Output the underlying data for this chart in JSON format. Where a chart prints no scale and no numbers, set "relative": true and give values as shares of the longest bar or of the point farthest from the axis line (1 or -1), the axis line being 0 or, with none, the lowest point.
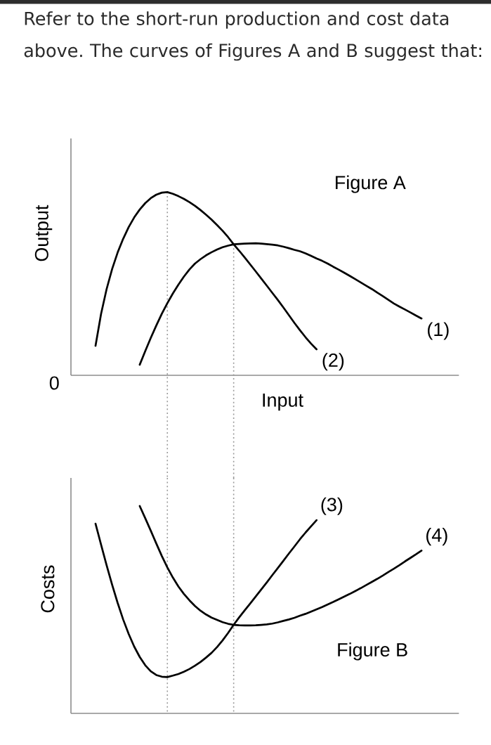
{
  "chart_data": [
    {
      "type": "line",
      "relative": true,
      "title": "Figure A",
      "xlabel": "Input",
      "ylabel": "Output",
      "annotations": [
        "Refer to the short-run production and cost data above. The curves of Figures A and B suggest that:",
        "0"
      ],
      "categories": [
        null,
        null,
        null,
        null,
        null,
        null,
        null,
        null,
        null,
        null,
        null,
        null,
        null,
        null,
        null,
        null,
        null,
        null,
        null,
        null,
        null,
        null,
        null,
        null,
        null,
        null,
        null,
        null,
        null,
        null,
        null,
        null,
        null,
        null,
        null,
        null,
        null,
        null,
        null,
        null,
        null,
        null,
        null,
        null,
        null,
        null,
        null,
        null,
        null,
        null,
        null,
        null,
        null,
        null,
        null,
        null,
        null,
        null,
        null,
        null
      ],
      "series": [
        {
          "name": "(1)",
          "color": "#000000",
          "values": [
            null,
            null,
            null,
            null,
            null,
            null,
            null,
            null,
            0.058,
            0.132,
            0.204,
            0.272,
            0.336,
            0.394,
            0.447,
            0.495,
            0.539,
            0.578,
            0.61,
            0.634,
            0.655,
            0.672,
            0.687,
            0.699,
            0.708,
            0.715,
            0.717,
            0.719,
            0.72,
            0.721,
            0.719,
            0.716,
            0.713,
            0.709,
            0.702,
            0.694,
            0.685,
            0.677,
            0.666,
            0.652,
            0.638,
            0.625,
            0.61,
            0.593,
            0.577,
            0.56,
            0.543,
            0.525,
            0.507,
            0.489,
            0.471,
            0.451,
            0.432,
            0.412,
            0.392,
            0.375,
            0.359,
            0.343,
            0.326,
            0.31
          ]
        },
        {
          "name": "(2)",
          "color": "#000000",
          "values": [
            0.161,
            0.335,
            0.47,
            0.58,
            0.67,
            0.745,
            0.809,
            0.862,
            0.905,
            0.94,
            0.967,
            0.986,
            0.997,
            1.0,
            0.991,
            0.978,
            0.963,
            0.945,
            0.925,
            0.902,
            0.877,
            0.85,
            0.82,
            0.789,
            0.754,
            0.715,
            0.68,
            0.643,
            0.605,
            0.567,
            0.528,
            0.489,
            0.45,
            0.411,
            0.37,
            0.328,
            0.286,
            0.246,
            0.208,
            0.173,
            0.142,
            null,
            null,
            null,
            null,
            null,
            null,
            null,
            null,
            null,
            null,
            null,
            null,
            null,
            null,
            null,
            null,
            null,
            null,
            null
          ]
        }
      ]
    },
    {
      "type": "line",
      "relative": true,
      "title": "Figure B",
      "ylabel": "Costs",
      "categories": [
        null,
        null,
        null,
        null,
        null,
        null,
        null,
        null,
        null,
        null,
        null,
        null,
        null,
        null,
        null,
        null,
        null,
        null,
        null,
        null,
        null,
        null,
        null,
        null,
        null,
        null,
        null,
        null,
        null,
        null,
        null,
        null,
        null,
        null,
        null,
        null,
        null,
        null,
        null,
        null,
        null,
        null,
        null,
        null,
        null,
        null,
        null,
        null,
        null,
        null,
        null,
        null,
        null,
        null,
        null,
        null,
        null,
        null,
        null,
        null
      ],
      "series": [
        {
          "name": "(3)",
          "color": "#000000",
          "values": [
            0.915,
            0.814,
            0.715,
            0.621,
            0.533,
            0.453,
            0.383,
            0.322,
            0.272,
            0.232,
            0.203,
            0.185,
            0.177,
            0.175,
            0.182,
            0.19,
            0.201,
            0.214,
            0.23,
            0.248,
            0.269,
            0.292,
            0.32,
            0.352,
            0.388,
            0.427,
            0.463,
            0.497,
            0.53,
            0.564,
            0.598,
            0.632,
            0.667,
            0.701,
            0.736,
            0.771,
            0.805,
            0.84,
            0.872,
            0.902,
            0.932,
            null,
            null,
            null,
            null,
            null,
            null,
            null,
            null,
            null,
            null,
            null,
            null,
            null,
            null,
            null,
            null,
            null,
            null,
            null
          ]
        },
        {
          "name": "(4)",
          "color": "#000000",
          "values": [
            null,
            null,
            null,
            null,
            null,
            null,
            null,
            null,
            1.0,
            0.941,
            0.881,
            0.819,
            0.759,
            0.704,
            0.655,
            0.612,
            0.576,
            0.545,
            0.518,
            0.495,
            0.477,
            0.462,
            0.451,
            0.44,
            0.432,
            0.427,
            0.425,
            0.424,
            0.424,
            0.425,
            0.427,
            0.429,
            0.433,
            0.439,
            0.446,
            0.453,
            0.461,
            0.471,
            0.48,
            0.491,
            0.502,
            0.513,
            0.525,
            0.537,
            0.55,
            0.563,
            0.576,
            0.59,
            0.604,
            0.619,
            0.634,
            0.649,
            0.665,
            0.682,
            0.698,
            0.715,
            0.733,
            0.75,
            0.767,
            0.785
          ]
        }
      ]
    }
  ]
}
